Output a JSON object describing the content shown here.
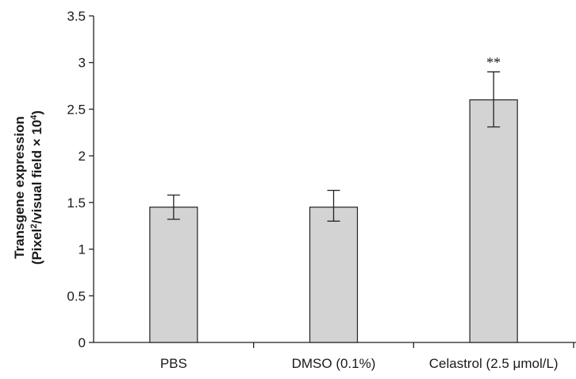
{
  "chart_data": {
    "type": "bar",
    "title": "",
    "xlabel": "",
    "ylabel_line1": "Transgene expression",
    "ylabel_line2_prefix": "(Pixel",
    "ylabel_line2_sup1": "2",
    "ylabel_line2_mid": "/visual field × 10",
    "ylabel_line2_sup2": "4",
    "ylabel_line2_suffix": ")",
    "ylim": [
      0,
      3.5
    ],
    "yticks": [
      "0",
      "0.5",
      "1",
      "1.5",
      "2",
      "2.5",
      "3",
      "3.5"
    ],
    "ytick_values": [
      0,
      0.5,
      1,
      1.5,
      2,
      2.5,
      3,
      3.5
    ],
    "categories": [
      "PBS",
      "DMSO (0.1%)",
      "Celastrol (2.5 μmol/L)"
    ],
    "values": [
      1.45,
      1.45,
      2.6
    ],
    "error_low": [
      1.32,
      1.3,
      2.31
    ],
    "error_high": [
      1.58,
      1.63,
      2.9
    ],
    "annotations": [
      "",
      "",
      "**"
    ],
    "bar_color": "#d3d3d3",
    "edge_color": "#222222",
    "grid": false,
    "legend": "none"
  }
}
